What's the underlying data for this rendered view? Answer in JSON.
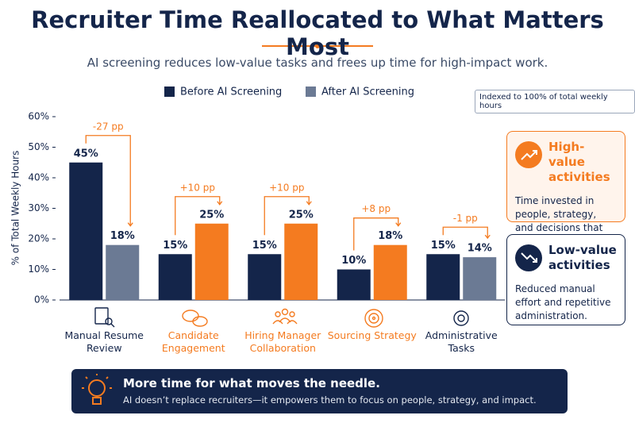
{
  "title": "Recruiter Time Reallocated to What Matters Most",
  "subtitle": "AI screening reduces low-value tasks and frees up time for high-impact work.",
  "chart_data": {
    "type": "bar",
    "categories": [
      "Manual Resume Review",
      "Candidate Engagement",
      "Hiring Manager Collaboration",
      "Sourcing Strategy",
      "Administrative Tasks"
    ],
    "series": [
      {
        "name": "Before AI Screening",
        "color": "#14254a",
        "values": [
          45,
          15,
          15,
          10,
          15
        ],
        "value_labels": [
          "45%",
          "15%",
          "15%",
          "10%",
          "15%"
        ]
      },
      {
        "name": "After AI Screening",
        "color": "#6b7a94",
        "colors": [
          "#6b7a94",
          "#f47b20",
          "#f47b20",
          "#f47b20",
          "#6b7a94"
        ],
        "values": [
          18,
          25,
          25,
          18,
          14
        ],
        "value_labels": [
          "18%",
          "25%",
          "25%",
          "18%",
          "14%"
        ]
      }
    ],
    "annotations": [
      "-27 pp",
      "+10 pp",
      "+10 pp",
      "+8 pp",
      "-1 pp"
    ],
    "annotation_color": "#f47b20",
    "y_label": "% of Total Weekly Hours",
    "ylim": [
      0,
      60
    ],
    "yticks": [
      {
        "value": 0,
        "label": "0%"
      },
      {
        "value": 10,
        "label": "10%"
      },
      {
        "value": 20,
        "label": "20%"
      },
      {
        "value": 30,
        "label": "30%"
      },
      {
        "value": 40,
        "label": "40%"
      },
      {
        "value": 50,
        "label": "50%"
      },
      {
        "value": 60,
        "label": "60%"
      }
    ],
    "grid": false,
    "note": "Indexed to 100% of total weekly hours"
  },
  "cards": [
    {
      "title": "High-value activities",
      "text": "Time invested in people, strategy, and decisions that drive better hires."
    },
    {
      "title": "Low-value activities",
      "text": "Reduced manual effort and repetitive administration."
    }
  ],
  "banner": {
    "title": "More time for what moves the needle.",
    "text": "AI doesn’t replace recruiters—it empowers them to focus on people, strategy, and impact."
  }
}
